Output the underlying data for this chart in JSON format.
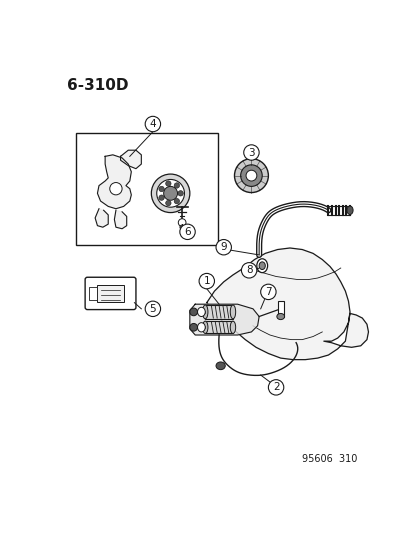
{
  "title": "6-310D",
  "footnote": "95606  310",
  "bg_color": "#ffffff",
  "line_color": "#1a1a1a",
  "title_fontsize": 11,
  "footnote_fontsize": 7,
  "label_fontsize": 7.5
}
